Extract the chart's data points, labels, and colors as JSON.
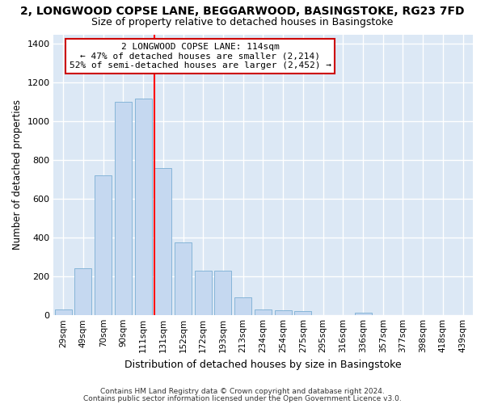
{
  "title1": "2, LONGWOOD COPSE LANE, BEGGARWOOD, BASINGSTOKE, RG23 7FD",
  "title2": "Size of property relative to detached houses in Basingstoke",
  "xlabel": "Distribution of detached houses by size in Basingstoke",
  "ylabel": "Number of detached properties",
  "categories": [
    "29sqm",
    "49sqm",
    "70sqm",
    "90sqm",
    "111sqm",
    "131sqm",
    "152sqm",
    "172sqm",
    "193sqm",
    "213sqm",
    "234sqm",
    "254sqm",
    "275sqm",
    "295sqm",
    "316sqm",
    "336sqm",
    "357sqm",
    "377sqm",
    "398sqm",
    "418sqm",
    "439sqm"
  ],
  "values": [
    30,
    240,
    720,
    1100,
    1120,
    760,
    375,
    230,
    230,
    90,
    30,
    25,
    20,
    0,
    0,
    10,
    0,
    0,
    0,
    0,
    0
  ],
  "bar_color": "#c5d8f0",
  "bar_edge_color": "#7aaed4",
  "annotation_line1": "2 LONGWOOD COPSE LANE: 114sqm",
  "annotation_line2": "← 47% of detached houses are smaller (2,214)",
  "annotation_line3": "52% of semi-detached houses are larger (2,452) →",
  "annotation_box_color": "#ffffff",
  "annotation_box_edge_color": "#cc0000",
  "footnote1": "Contains HM Land Registry data © Crown copyright and database right 2024.",
  "footnote2": "Contains public sector information licensed under the Open Government Licence v3.0.",
  "ylim": [
    0,
    1450
  ],
  "yticks": [
    0,
    200,
    400,
    600,
    800,
    1000,
    1200,
    1400
  ],
  "fig_bg_color": "#ffffff",
  "ax_bg_color": "#dce8f5",
  "grid_color": "#ffffff",
  "red_line_x": 4.575,
  "title1_fontsize": 10,
  "title2_fontsize": 9
}
